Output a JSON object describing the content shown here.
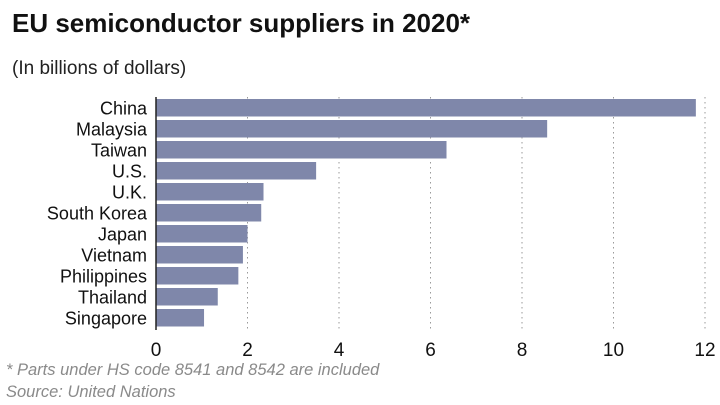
{
  "header": {
    "title": "EU semiconductor suppliers in 2020*",
    "subtitle": "(In billions of dollars)"
  },
  "footer": {
    "note": "* Parts under HS code 8541 and 8542 are included",
    "source": "Source: United Nations"
  },
  "colors": {
    "bar": "#7f87aa",
    "grid": "#9a9a9a",
    "axis": "#222222"
  },
  "chart_data": {
    "type": "bar",
    "orientation": "horizontal",
    "title": "EU semiconductor suppliers in 2020*",
    "subtitle": "(In billions of dollars)",
    "categories": [
      "China",
      "Malaysia",
      "Taiwan",
      "U.S.",
      "U.K.",
      "South Korea",
      "Japan",
      "Vietnam",
      "Philippines",
      "Thailand",
      "Singapore"
    ],
    "values": [
      11.8,
      8.55,
      6.35,
      3.5,
      2.35,
      2.3,
      2.0,
      1.9,
      1.8,
      1.35,
      1.05
    ],
    "xlim": [
      0,
      12
    ],
    "ticks": [
      "0",
      "2",
      "4",
      "6",
      "8",
      "10",
      "12"
    ],
    "grid": "vertical dotted",
    "legend": "none"
  }
}
